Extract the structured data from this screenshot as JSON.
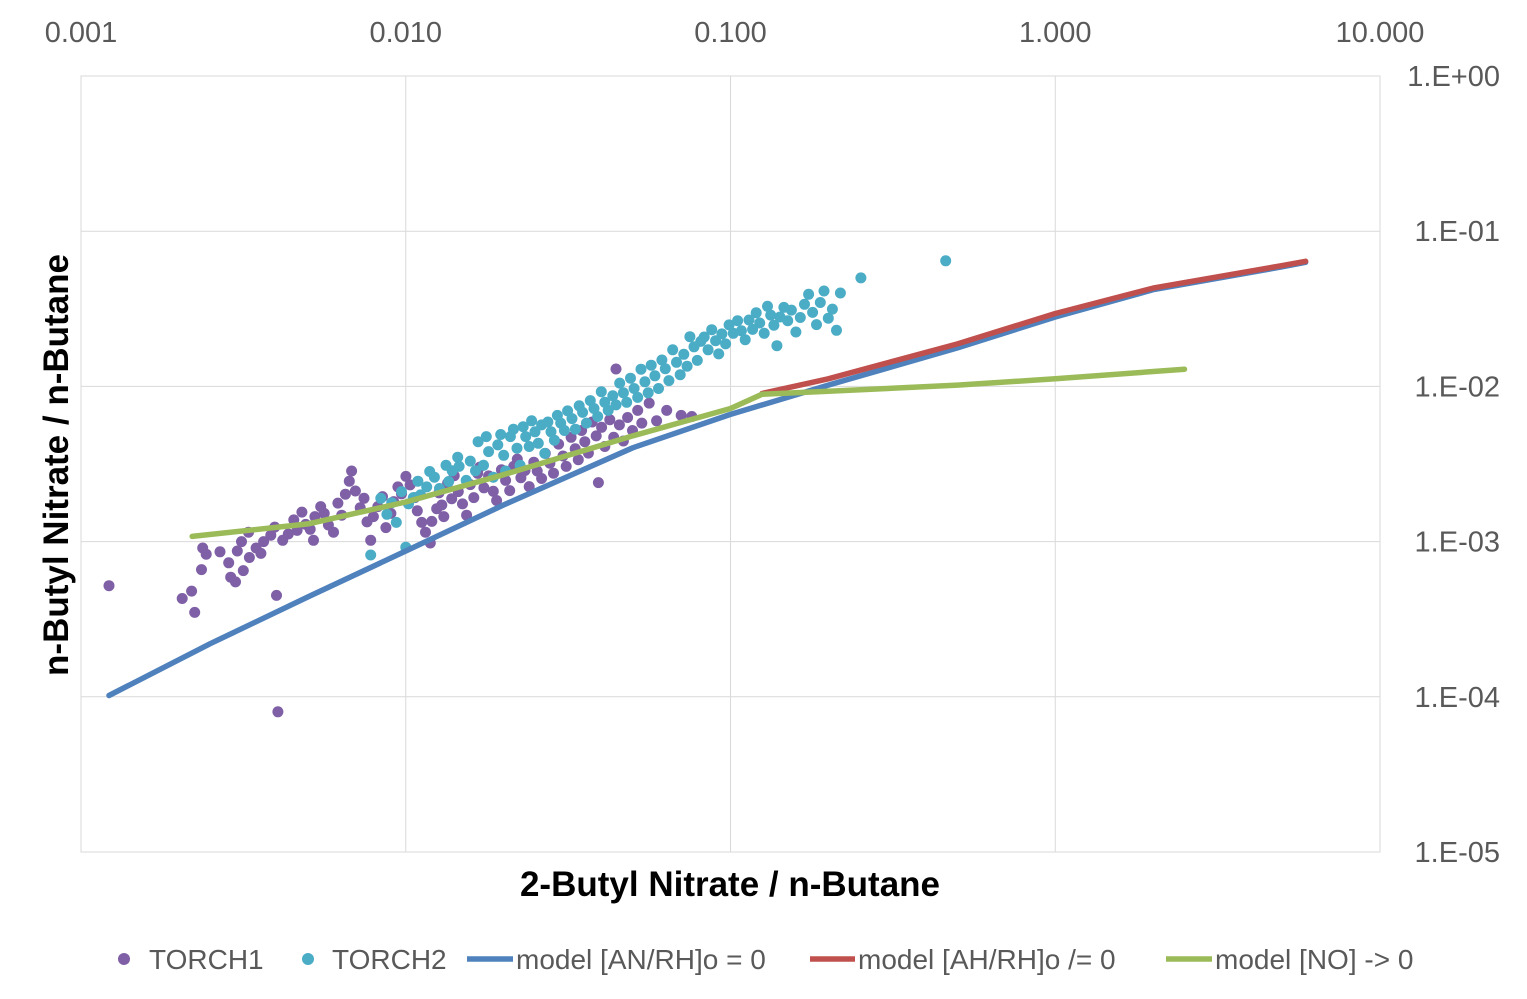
{
  "chart_data": {
    "type": "scatter",
    "title": "",
    "xlabel": "2-Butyl Nitrate / n-Butane",
    "ylabel": "n-Butyl Nitrate / n-Butane",
    "x_scale": "log",
    "y_scale": "log",
    "xlim": [
      0.001,
      10
    ],
    "ylim": [
      1e-05,
      1
    ],
    "x_axis_position": "top",
    "y_axis_position": "right",
    "x_ticks": [
      0.001,
      0.01,
      0.1,
      1,
      10
    ],
    "x_tick_labels": [
      "0.001",
      "0.010",
      "0.100",
      "1.000",
      "10.000"
    ],
    "y_ticks": [
      1,
      0.1,
      0.01,
      0.001,
      0.0001,
      1e-05
    ],
    "y_tick_labels": [
      "1.E+00",
      "1.E-01",
      "1.E-02",
      "1.E-03",
      "1.E-04",
      "1.E-05"
    ],
    "grid": true,
    "legend_position": "bottom",
    "series": [
      {
        "name": "TORCH1",
        "kind": "scatter",
        "color": "#7F5FA5",
        "points": [
          [
            0.00122,
            0.00052
          ],
          [
            0.00205,
            0.00043
          ],
          [
            0.00224,
            0.00035
          ],
          [
            0.00219,
            0.00048
          ],
          [
            0.00235,
            0.00066
          ],
          [
            0.00243,
            0.00083
          ],
          [
            0.00237,
            0.00091
          ],
          [
            0.00268,
            0.00086
          ],
          [
            0.00285,
            0.00073
          ],
          [
            0.00289,
            0.00059
          ],
          [
            0.00299,
            0.00055
          ],
          [
            0.00316,
            0.00065
          ],
          [
            0.00303,
            0.00087
          ],
          [
            0.0033,
            0.00079
          ],
          [
            0.00312,
            0.001
          ],
          [
            0.00328,
            0.00115
          ],
          [
            0.00346,
            0.00091
          ],
          [
            0.00365,
            0.001
          ],
          [
            0.00358,
            0.00084
          ],
          [
            0.00384,
            0.0011
          ],
          [
            0.00395,
            0.00124
          ],
          [
            0.00418,
            0.00102
          ],
          [
            0.004,
            0.00045
          ],
          [
            0.00404,
            8e-05
          ],
          [
            0.00435,
            0.00112
          ],
          [
            0.00452,
            0.00138
          ],
          [
            0.00463,
            0.00118
          ],
          [
            0.00479,
            0.00155
          ],
          [
            0.00492,
            0.00129
          ],
          [
            0.00508,
            0.0012
          ],
          [
            0.00525,
            0.00145
          ],
          [
            0.0052,
            0.00102
          ],
          [
            0.00547,
            0.00168
          ],
          [
            0.00561,
            0.00152
          ],
          [
            0.00578,
            0.00128
          ],
          [
            0.00599,
            0.00115
          ],
          [
            0.00618,
            0.00177
          ],
          [
            0.00635,
            0.00148
          ],
          [
            0.00652,
            0.00202
          ],
          [
            0.0067,
            0.00245
          ],
          [
            0.00681,
            0.00285
          ],
          [
            0.007,
            0.00212
          ],
          [
            0.00724,
            0.00165
          ],
          [
            0.00744,
            0.0019
          ],
          [
            0.0076,
            0.00134
          ],
          [
            0.0078,
            0.00102
          ],
          [
            0.00795,
            0.00145
          ],
          [
            0.0082,
            0.00168
          ],
          [
            0.00848,
            0.00195
          ],
          [
            0.00869,
            0.00123
          ],
          [
            0.009,
            0.00152
          ],
          [
            0.00918,
            0.00181
          ],
          [
            0.00946,
            0.00225
          ],
          [
            0.0097,
            0.00203
          ],
          [
            0.01001,
            0.00263
          ],
          [
            0.01031,
            0.00232
          ],
          [
            0.01066,
            0.00192
          ],
          [
            0.01085,
            0.00158
          ],
          [
            0.0112,
            0.00133
          ],
          [
            0.0115,
            0.00115
          ],
          [
            0.0119,
            0.00098
          ],
          [
            0.01203,
            0.00135
          ],
          [
            0.01245,
            0.00163
          ],
          [
            0.01266,
            0.00206
          ],
          [
            0.01291,
            0.00172
          ],
          [
            0.0131,
            0.00145
          ],
          [
            0.01345,
            0.00238
          ],
          [
            0.01385,
            0.00189
          ],
          [
            0.0141,
            0.00266
          ],
          [
            0.01451,
            0.0021
          ],
          [
            0.01495,
            0.00175
          ],
          [
            0.0154,
            0.00148
          ],
          [
            0.0158,
            0.00233
          ],
          [
            0.0162,
            0.00192
          ],
          [
            0.01665,
            0.00275
          ],
          [
            0.0169,
            0.00302
          ],
          [
            0.0174,
            0.00222
          ],
          [
            0.018,
            0.00265
          ],
          [
            0.0186,
            0.00211
          ],
          [
            0.01905,
            0.00184
          ],
          [
            0.0197,
            0.0029
          ],
          [
            0.0203,
            0.00248
          ],
          [
            0.0209,
            0.00213
          ],
          [
            0.0215,
            0.00305
          ],
          [
            0.02205,
            0.0034
          ],
          [
            0.02262,
            0.00258
          ],
          [
            0.0233,
            0.00287
          ],
          [
            0.024,
            0.00226
          ],
          [
            0.0248,
            0.00325
          ],
          [
            0.0254,
            0.00285
          ],
          [
            0.0262,
            0.00255
          ],
          [
            0.0269,
            0.0037
          ],
          [
            0.02778,
            0.0032
          ],
          [
            0.0285,
            0.00276
          ],
          [
            0.02955,
            0.00425
          ],
          [
            0.0305,
            0.00356
          ],
          [
            0.0312,
            0.00305
          ],
          [
            0.0323,
            0.0047
          ],
          [
            0.03325,
            0.00396
          ],
          [
            0.034,
            0.00337
          ],
          [
            0.0348,
            0.0052
          ],
          [
            0.0356,
            0.0044
          ],
          [
            0.0365,
            0.00372
          ],
          [
            0.0375,
            0.0059
          ],
          [
            0.0386,
            0.0048
          ],
          [
            0.0392,
            0.0024
          ],
          [
            0.0401,
            0.00545
          ],
          [
            0.041,
            0.0041
          ],
          [
            0.0425,
            0.0061
          ],
          [
            0.0437,
            0.0047
          ],
          [
            0.0444,
            0.01295
          ],
          [
            0.0455,
            0.00565
          ],
          [
            0.0468,
            0.00445
          ],
          [
            0.0482,
            0.0063
          ],
          [
            0.0499,
            0.0052
          ],
          [
            0.0518,
            0.007
          ],
          [
            0.0533,
            0.0058
          ],
          [
            0.0562,
            0.0078
          ],
          [
            0.0592,
            0.006
          ],
          [
            0.0636,
            0.007
          ],
          [
            0.0705,
            0.0065
          ],
          [
            0.076,
            0.0064
          ]
        ]
      },
      {
        "name": "TORCH2",
        "kind": "scatter",
        "color": "#4BACC6",
        "points": [
          [
            0.0078,
            0.00082
          ],
          [
            0.00838,
            0.0019
          ],
          [
            0.00875,
            0.0015
          ],
          [
            0.00905,
            0.00178
          ],
          [
            0.00935,
            0.00133
          ],
          [
            0.0097,
            0.0021
          ],
          [
            0.01,
            0.00092
          ],
          [
            0.0102,
            0.00175
          ],
          [
            0.01055,
            0.00192
          ],
          [
            0.0109,
            0.00245
          ],
          [
            0.0111,
            0.002
          ],
          [
            0.0116,
            0.00225
          ],
          [
            0.01185,
            0.00283
          ],
          [
            0.01225,
            0.0026
          ],
          [
            0.0127,
            0.0022
          ],
          [
            0.0133,
            0.0031
          ],
          [
            0.01356,
            0.00244
          ],
          [
            0.0139,
            0.00286
          ],
          [
            0.01445,
            0.0035
          ],
          [
            0.0146,
            0.00305
          ],
          [
            0.01535,
            0.00248
          ],
          [
            0.0158,
            0.0033
          ],
          [
            0.0164,
            0.00286
          ],
          [
            0.0167,
            0.0044
          ],
          [
            0.01735,
            0.0031
          ],
          [
            0.0177,
            0.00475
          ],
          [
            0.018,
            0.0038
          ],
          [
            0.0186,
            0.0026
          ],
          [
            0.0192,
            0.0042
          ],
          [
            0.0196,
            0.0049
          ],
          [
            0.02003,
            0.0036
          ],
          [
            0.0203,
            0.00285
          ],
          [
            0.021,
            0.00475
          ],
          [
            0.02145,
            0.0053
          ],
          [
            0.022,
            0.004
          ],
          [
            0.0225,
            0.0031
          ],
          [
            0.023,
            0.0055
          ],
          [
            0.0234,
            0.00475
          ],
          [
            0.024,
            0.0041
          ],
          [
            0.0244,
            0.006
          ],
          [
            0.025,
            0.0051
          ],
          [
            0.0256,
            0.0043
          ],
          [
            0.0262,
            0.00565
          ],
          [
            0.0268,
            0.0037
          ],
          [
            0.0274,
            0.0059
          ],
          [
            0.028,
            0.0051
          ],
          [
            0.0287,
            0.0045
          ],
          [
            0.0293,
            0.0065
          ],
          [
            0.03,
            0.0058
          ],
          [
            0.0308,
            0.0052
          ],
          [
            0.0315,
            0.00695
          ],
          [
            0.0325,
            0.0062
          ],
          [
            0.0333,
            0.0053
          ],
          [
            0.0342,
            0.0075
          ],
          [
            0.03505,
            0.0068
          ],
          [
            0.036,
            0.0058
          ],
          [
            0.037,
            0.0081
          ],
          [
            0.038,
            0.0072
          ],
          [
            0.039,
            0.0064
          ],
          [
            0.04,
            0.00925
          ],
          [
            0.041,
            0.0079
          ],
          [
            0.042,
            0.007
          ],
          [
            0.0434,
            0.0087
          ],
          [
            0.0444,
            0.0076
          ],
          [
            0.0456,
            0.0105
          ],
          [
            0.0468,
            0.0091
          ],
          [
            0.0479,
            0.0079
          ],
          [
            0.0492,
            0.0113
          ],
          [
            0.0505,
            0.0097
          ],
          [
            0.0518,
            0.0085
          ],
          [
            0.053,
            0.0129
          ],
          [
            0.0545,
            0.0107
          ],
          [
            0.0558,
            0.0091
          ],
          [
            0.057,
            0.0137
          ],
          [
            0.0585,
            0.0117
          ],
          [
            0.06,
            0.0097
          ],
          [
            0.0615,
            0.0148
          ],
          [
            0.063,
            0.013
          ],
          [
            0.0646,
            0.0109
          ],
          [
            0.0664,
            0.0172
          ],
          [
            0.0682,
            0.0143
          ],
          [
            0.07,
            0.0119
          ],
          [
            0.0718,
            0.0161
          ],
          [
            0.0735,
            0.0135
          ],
          [
            0.075,
            0.0209
          ],
          [
            0.0772,
            0.018
          ],
          [
            0.079,
            0.0147
          ],
          [
            0.081,
            0.0195
          ],
          [
            0.083,
            0.0208
          ],
          [
            0.0853,
            0.0172
          ],
          [
            0.0875,
            0.0232
          ],
          [
            0.09,
            0.0197
          ],
          [
            0.092,
            0.0162
          ],
          [
            0.0941,
            0.0218
          ],
          [
            0.0966,
            0.0188
          ],
          [
            0.099,
            0.0249
          ],
          [
            0.102,
            0.022
          ],
          [
            0.1052,
            0.0265
          ],
          [
            0.108,
            0.0228
          ],
          [
            0.111,
            0.02
          ],
          [
            0.114,
            0.0268
          ],
          [
            0.117,
            0.0233
          ],
          [
            0.12,
            0.0298
          ],
          [
            0.123,
            0.0256
          ],
          [
            0.127,
            0.022
          ],
          [
            0.13,
            0.0328
          ],
          [
            0.133,
            0.0288
          ],
          [
            0.136,
            0.0248
          ],
          [
            0.139,
            0.0183
          ],
          [
            0.142,
            0.028
          ],
          [
            0.146,
            0.0323
          ],
          [
            0.15,
            0.0265
          ],
          [
            0.154,
            0.031
          ],
          [
            0.159,
            0.0224
          ],
          [
            0.164,
            0.0278
          ],
          [
            0.169,
            0.0338
          ],
          [
            0.174,
            0.0392
          ],
          [
            0.179,
            0.03
          ],
          [
            0.184,
            0.025
          ],
          [
            0.189,
            0.0347
          ],
          [
            0.194,
            0.0412
          ],
          [
            0.2,
            0.0275
          ],
          [
            0.206,
            0.0315
          ],
          [
            0.212,
            0.023
          ],
          [
            0.218,
            0.04
          ],
          [
            0.252,
            0.05
          ],
          [
            0.46,
            0.0645
          ]
        ]
      },
      {
        "name": "model [AN/RH]o = 0",
        "kind": "line",
        "color": "#4F81BD",
        "points": [
          [
            0.00122,
            0.000102
          ],
          [
            0.0025,
            0.00022
          ],
          [
            0.005,
            0.00044
          ],
          [
            0.01,
            0.00087
          ],
          [
            0.02,
            0.00172
          ],
          [
            0.05,
            0.00402
          ],
          [
            0.1,
            0.0066
          ],
          [
            0.2,
            0.0102
          ],
          [
            0.5,
            0.0177
          ],
          [
            1,
            0.028
          ],
          [
            2,
            0.042
          ],
          [
            5,
            0.059
          ],
          [
            5.9,
            0.063
          ]
        ]
      },
      {
        "name": "model [AH/RH]o /= 0",
        "kind": "line",
        "color": "#C0504D",
        "points": [
          [
            0.125,
            0.009
          ],
          [
            0.2,
            0.0112
          ],
          [
            0.5,
            0.0188
          ],
          [
            1,
            0.0295
          ],
          [
            2,
            0.043
          ],
          [
            5,
            0.06
          ],
          [
            5.9,
            0.064
          ]
        ]
      },
      {
        "name": "model [NO] -> 0",
        "kind": "line",
        "color": "#9BBB59",
        "points": [
          [
            0.0022,
            0.00108
          ],
          [
            0.005,
            0.0013
          ],
          [
            0.01,
            0.0018
          ],
          [
            0.02,
            0.0027
          ],
          [
            0.05,
            0.0048
          ],
          [
            0.1,
            0.0072
          ],
          [
            0.125,
            0.0089
          ],
          [
            0.2,
            0.0093
          ],
          [
            0.5,
            0.0102
          ],
          [
            1,
            0.0112
          ],
          [
            2.5,
            0.0129
          ]
        ]
      }
    ]
  }
}
